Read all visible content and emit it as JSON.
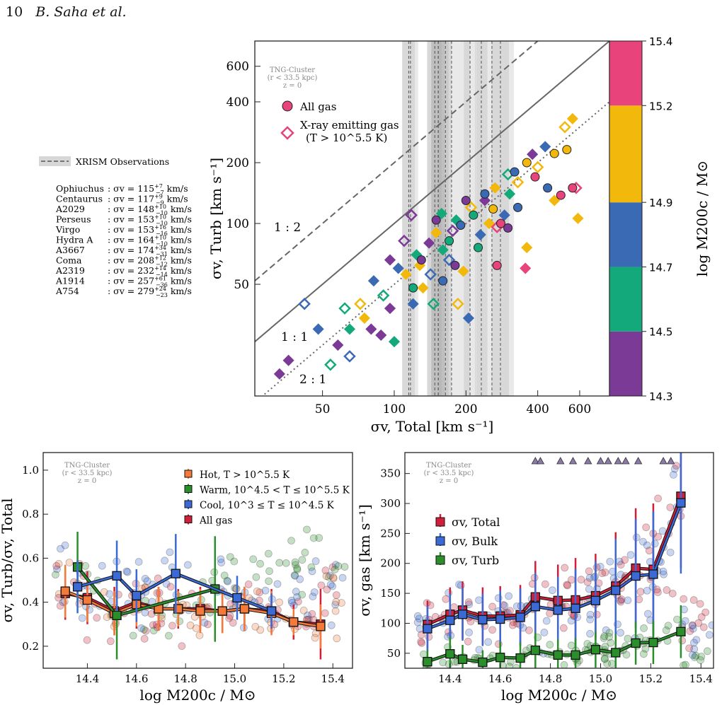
{
  "header": {
    "page": "10",
    "authors": "B. Saha et al."
  },
  "colors": {
    "bin_purple": "#7b3a96",
    "bin_green": "#13a97a",
    "bin_blue": "#3b6ab5",
    "bin_yellow": "#f2b90c",
    "bin_pink": "#e8437a",
    "hot": "#f47a3a",
    "warm": "#2a8f2a",
    "cool": "#3b6ad6",
    "all": "#d11f3a",
    "total": "#d11f3a",
    "bulk": "#3b6ad6",
    "turb": "#2a8f2a"
  },
  "chart_data": [
    {
      "type": "scatter",
      "id": "main",
      "xlabel": "σv, Total  [km s⁻¹]",
      "ylabel": "σv, Turb  [km s⁻¹]",
      "x_scale": "log",
      "y_scale": "log",
      "xlim": [
        26,
        800
      ],
      "ylim": [
        14,
        800
      ],
      "x_ticks": [
        50,
        100,
        200,
        400,
        600
      ],
      "y_ticks": [
        50,
        100,
        200,
        400,
        600
      ],
      "sim_label": [
        "TNG-Cluster",
        "(r < 33.5 kpc)",
        "z = 0"
      ],
      "legend": [
        "All gas",
        "X-ray emitting gas",
        "(T > 10^5.5 K)"
      ],
      "ratio_lines": [
        {
          "label": "1 : 2",
          "ratio": 2.0,
          "style": "dashed"
        },
        {
          "label": "1 : 1",
          "ratio": 1.0,
          "style": "solid"
        },
        {
          "label": "2 : 1",
          "ratio": 0.5,
          "style": "dotted"
        }
      ],
      "colorbar": {
        "label": "log  M200c / M⊙",
        "ticks": [
          "14.3",
          "14.5",
          "14.7",
          "14.9",
          "15.2",
          "15.4"
        ],
        "bins": [
          "bin_purple",
          "bin_green",
          "bin_blue",
          "bin_yellow",
          "bin_pink"
        ]
      },
      "xrism_legend": "XRISM Observations",
      "observations": [
        {
          "name": "Ophiuchus",
          "value": "115",
          "up": "+7",
          "lo": "−7"
        },
        {
          "name": "Centaurus",
          "value": "117",
          "up": "+9",
          "lo": "−9"
        },
        {
          "name": "A2029",
          "value": "148",
          "up": "+10",
          "lo": "−10"
        },
        {
          "name": "Perseus",
          "value": "153",
          "up": "+10",
          "lo": "−10"
        },
        {
          "name": "Virgo",
          "value": "153",
          "up": "+16",
          "lo": "−16"
        },
        {
          "name": "Hydra A",
          "value": "164",
          "up": "+10",
          "lo": "−10"
        },
        {
          "name": "A3667",
          "value": "174",
          "up": "+34",
          "lo": "−31"
        },
        {
          "name": "Coma",
          "value": "208",
          "up": "+12",
          "lo": "−12"
        },
        {
          "name": "A2319",
          "value": "232",
          "up": "+14",
          "lo": "−14"
        },
        {
          "name": "A1914",
          "value": "257",
          "up": "+61",
          "lo": "−36"
        },
        {
          "name": "A754",
          "value": "279",
          "up": "+24",
          "lo": "−23"
        }
      ],
      "obs_prefix": ": σv = ",
      "obs_unit": " km/s",
      "sample_points_diamond": [
        {
          "x": 42,
          "y": 40,
          "c": "bin_blue"
        },
        {
          "x": 48,
          "y": 30,
          "c": "bin_blue"
        },
        {
          "x": 58,
          "y": 25,
          "c": "bin_purple"
        },
        {
          "x": 54,
          "y": 20,
          "c": "bin_green"
        },
        {
          "x": 33,
          "y": 18,
          "c": "bin_purple"
        },
        {
          "x": 36,
          "y": 21,
          "c": "bin_purple"
        },
        {
          "x": 65,
          "y": 22,
          "c": "bin_blue"
        },
        {
          "x": 75,
          "y": 34,
          "c": "bin_yellow"
        },
        {
          "x": 82,
          "y": 52,
          "c": "bin_blue"
        },
        {
          "x": 90,
          "y": 44,
          "c": "bin_green"
        },
        {
          "x": 96,
          "y": 38,
          "c": "bin_purple"
        },
        {
          "x": 104,
          "y": 60,
          "c": "bin_blue"
        },
        {
          "x": 110,
          "y": 82,
          "c": "bin_purple"
        },
        {
          "x": 124,
          "y": 70,
          "c": "bin_green"
        },
        {
          "x": 132,
          "y": 48,
          "c": "bin_yellow"
        },
        {
          "x": 142,
          "y": 56,
          "c": "bin_blue"
        },
        {
          "x": 150,
          "y": 90,
          "c": "bin_yellow"
        },
        {
          "x": 160,
          "y": 74,
          "c": "bin_green"
        },
        {
          "x": 170,
          "y": 66,
          "c": "bin_blue"
        },
        {
          "x": 182,
          "y": 104,
          "c": "bin_green"
        },
        {
          "x": 195,
          "y": 58,
          "c": "bin_yellow"
        },
        {
          "x": 210,
          "y": 120,
          "c": "bin_yellow"
        },
        {
          "x": 230,
          "y": 88,
          "c": "bin_blue"
        },
        {
          "x": 250,
          "y": 100,
          "c": "bin_yellow"
        },
        {
          "x": 270,
          "y": 96,
          "c": "bin_pink"
        },
        {
          "x": 290,
          "y": 110,
          "c": "bin_blue"
        },
        {
          "x": 305,
          "y": 140,
          "c": "bin_green"
        },
        {
          "x": 330,
          "y": 160,
          "c": "bin_yellow"
        },
        {
          "x": 360,
          "y": 76,
          "c": "bin_yellow"
        },
        {
          "x": 380,
          "y": 220,
          "c": "bin_purple"
        },
        {
          "x": 400,
          "y": 190,
          "c": "bin_yellow"
        },
        {
          "x": 430,
          "y": 240,
          "c": "bin_blue"
        },
        {
          "x": 470,
          "y": 130,
          "c": "bin_yellow"
        },
        {
          "x": 520,
          "y": 300,
          "c": "bin_yellow"
        },
        {
          "x": 560,
          "y": 330,
          "c": "bin_yellow"
        },
        {
          "x": 590,
          "y": 106,
          "c": "bin_yellow"
        },
        {
          "x": 580,
          "y": 150,
          "c": "bin_pink"
        },
        {
          "x": 355,
          "y": 60,
          "c": "bin_pink"
        },
        {
          "x": 205,
          "y": 34,
          "c": "bin_blue"
        },
        {
          "x": 185,
          "y": 40,
          "c": "bin_yellow"
        },
        {
          "x": 100,
          "y": 26,
          "c": "bin_green"
        },
        {
          "x": 88,
          "y": 28,
          "c": "bin_purple"
        },
        {
          "x": 118,
          "y": 110,
          "c": "bin_purple"
        },
        {
          "x": 140,
          "y": 80,
          "c": "bin_purple"
        },
        {
          "x": 158,
          "y": 112,
          "c": "bin_green"
        },
        {
          "x": 176,
          "y": 92,
          "c": "bin_purple"
        },
        {
          "x": 240,
          "y": 130,
          "c": "bin_purple"
        },
        {
          "x": 265,
          "y": 150,
          "c": "bin_yellow"
        },
        {
          "x": 300,
          "y": 175,
          "c": "bin_green"
        },
        {
          "x": 120,
          "y": 40,
          "c": "bin_blue"
        },
        {
          "x": 128,
          "y": 62,
          "c": "bin_yellow"
        },
        {
          "x": 146,
          "y": 40,
          "c": "bin_green"
        },
        {
          "x": 112,
          "y": 56,
          "c": "bin_yellow"
        },
        {
          "x": 96,
          "y": 66,
          "c": "bin_purple"
        },
        {
          "x": 72,
          "y": 40,
          "c": "bin_yellow"
        },
        {
          "x": 65,
          "y": 30,
          "c": "bin_green"
        },
        {
          "x": 80,
          "y": 30,
          "c": "bin_purple"
        },
        {
          "x": 62,
          "y": 38,
          "c": "bin_green"
        }
      ],
      "sample_points_circle": [
        {
          "x": 130,
          "y": 66,
          "c": "bin_purple"
        },
        {
          "x": 150,
          "y": 104,
          "c": "bin_purple"
        },
        {
          "x": 170,
          "y": 82,
          "c": "bin_green"
        },
        {
          "x": 190,
          "y": 98,
          "c": "bin_blue"
        },
        {
          "x": 215,
          "y": 110,
          "c": "bin_green"
        },
        {
          "x": 240,
          "y": 140,
          "c": "bin_blue"
        },
        {
          "x": 260,
          "y": 118,
          "c": "bin_yellow"
        },
        {
          "x": 280,
          "y": 100,
          "c": "bin_pink"
        },
        {
          "x": 320,
          "y": 180,
          "c": "bin_blue"
        },
        {
          "x": 360,
          "y": 200,
          "c": "bin_yellow"
        },
        {
          "x": 300,
          "y": 95,
          "c": "bin_purple"
        },
        {
          "x": 470,
          "y": 222,
          "c": "bin_yellow"
        },
        {
          "x": 440,
          "y": 150,
          "c": "bin_blue"
        },
        {
          "x": 500,
          "y": 138,
          "c": "bin_pink"
        },
        {
          "x": 560,
          "y": 150,
          "c": "bin_pink"
        },
        {
          "x": 530,
          "y": 232,
          "c": "bin_yellow"
        },
        {
          "x": 180,
          "y": 62,
          "c": "bin_purple"
        },
        {
          "x": 225,
          "y": 76,
          "c": "bin_green"
        },
        {
          "x": 270,
          "y": 62,
          "c": "bin_pink"
        },
        {
          "x": 160,
          "y": 52,
          "c": "bin_blue"
        },
        {
          "x": 120,
          "y": 48,
          "c": "bin_green"
        },
        {
          "x": 200,
          "y": 130,
          "c": "bin_purple"
        },
        {
          "x": 330,
          "y": 120,
          "c": "bin_blue"
        },
        {
          "x": 390,
          "y": 170,
          "c": "bin_pink"
        }
      ]
    },
    {
      "type": "scatter",
      "id": "lower-left",
      "xlabel": "log  M200c / M⊙",
      "ylabel": "σv, Turb/σv, Total",
      "xlim": [
        14.22,
        15.48
      ],
      "ylim": [
        0.1,
        1.08
      ],
      "x_ticks": [
        14.4,
        14.6,
        14.8,
        15.0,
        15.2,
        15.4
      ],
      "y_ticks": [
        0.2,
        0.4,
        0.6,
        0.8,
        1.0
      ],
      "sim_label": [
        "TNG-Cluster",
        "(r < 33.5 kpc)",
        "z = 0"
      ],
      "legend": [
        "Hot,  T > 10^5.5 K",
        "Warm,  10^4.5 < T ≤ 10^5.5 K",
        "Cool,  10^3 ≤ T ≤ 10^4.5 K",
        "All gas"
      ],
      "series": [
        {
          "name": "All gas",
          "color": "all",
          "x": [
            14.31,
            14.4,
            14.51,
            14.6,
            14.69,
            14.77,
            14.86,
            14.95,
            15.04,
            15.15,
            15.24,
            15.35
          ],
          "y": [
            0.44,
            0.42,
            0.36,
            0.4,
            0.37,
            0.37,
            0.37,
            0.36,
            0.37,
            0.36,
            0.31,
            0.3
          ],
          "err": [
            0.12,
            0.12,
            0.11,
            0.12,
            0.1,
            0.09,
            0.1,
            0.1,
            0.1,
            0.1,
            0.08,
            0.16
          ]
        },
        {
          "name": "Hot",
          "color": "hot",
          "x": [
            14.31,
            14.4,
            14.51,
            14.6,
            14.69,
            14.77,
            14.86,
            14.95,
            15.04,
            15.15,
            15.24,
            15.35
          ],
          "y": [
            0.45,
            0.41,
            0.35,
            0.39,
            0.37,
            0.37,
            0.36,
            0.36,
            0.37,
            0.35,
            0.31,
            0.29
          ],
          "err": [
            0.12,
            0.1,
            0.1,
            0.1,
            0.1,
            0.08,
            0.1,
            0.1,
            0.1,
            0.1,
            0.06,
            0.1
          ]
        },
        {
          "name": "Warm",
          "color": "warm",
          "x": [
            14.36,
            14.52,
            14.92
          ],
          "y": [
            0.56,
            0.34,
            0.46
          ],
          "err": [
            0.16,
            0.2,
            0.24
          ]
        },
        {
          "name": "Cool",
          "color": "cool",
          "x": [
            14.36,
            14.52,
            14.6,
            14.76,
            15.01,
            15.15
          ],
          "y": [
            0.47,
            0.52,
            0.43,
            0.53,
            0.42,
            0.36
          ],
          "err": [
            0.12,
            0.16,
            0.12,
            0.18,
            0.1,
            0.08
          ]
        }
      ]
    },
    {
      "type": "scatter",
      "id": "lower-right",
      "xlabel": "log  M200c / M⊙",
      "ylabel": "σv, gas  [km s⁻¹]",
      "xlim": [
        14.22,
        15.45
      ],
      "ylim": [
        25,
        385
      ],
      "x_ticks": [
        14.4,
        14.6,
        14.8,
        15.0,
        15.2,
        15.4
      ],
      "y_ticks": [
        50,
        100,
        150,
        200,
        250,
        300,
        350
      ],
      "sim_label": [
        "TNG-Cluster",
        "(r < 33.5 kpc)",
        "z = 0"
      ],
      "legend": [
        "σv, Total",
        "σv, Bulk",
        "σv, Turb"
      ],
      "series": [
        {
          "name": "σv, Total",
          "color": "total",
          "x": [
            14.31,
            14.4,
            14.45,
            14.53,
            14.6,
            14.68,
            14.74,
            14.83,
            14.9,
            14.98,
            15.06,
            15.14,
            15.21,
            15.32
          ],
          "y": [
            98,
            115,
            122,
            112,
            112,
            114,
            144,
            138,
            139,
            146,
            162,
            192,
            190,
            312
          ],
          "err": [
            40,
            45,
            48,
            48,
            50,
            50,
            60,
            60,
            70,
            70,
            90,
            100,
            110,
            120
          ]
        },
        {
          "name": "σv, Bulk",
          "color": "bulk",
          "x": [
            14.31,
            14.4,
            14.45,
            14.53,
            14.6,
            14.68,
            14.74,
            14.83,
            14.9,
            14.98,
            15.06,
            15.14,
            15.21,
            15.32
          ],
          "y": [
            91,
            105,
            115,
            106,
            107,
            110,
            128,
            122,
            125,
            138,
            155,
            179,
            182,
            301
          ],
          "err": [
            38,
            44,
            44,
            44,
            48,
            48,
            56,
            56,
            66,
            66,
            86,
            95,
            105,
            118
          ]
        },
        {
          "name": "σv, Turb",
          "color": "turb",
          "x": [
            14.31,
            14.4,
            14.45,
            14.53,
            14.6,
            14.68,
            14.74,
            14.83,
            14.9,
            14.98,
            15.06,
            15.14,
            15.21,
            15.32
          ],
          "y": [
            36,
            49,
            40,
            35,
            43,
            42,
            55,
            47,
            47,
            56,
            51,
            67,
            68,
            86
          ],
          "err": [
            20,
            28,
            24,
            20,
            26,
            26,
            30,
            26,
            28,
            30,
            30,
            36,
            36,
            44
          ]
        }
      ]
    }
  ]
}
